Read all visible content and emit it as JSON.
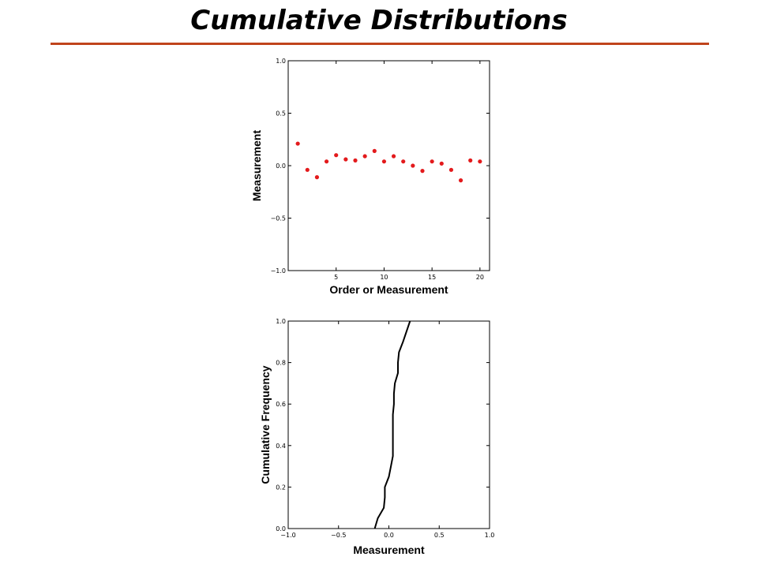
{
  "slide": {
    "title": "Cumulative Distributions"
  },
  "colors": {
    "title_rule": "#c0441c",
    "points": "#e31a1c",
    "line": "#000000"
  },
  "chart_data": [
    {
      "type": "scatter",
      "xlabel": "Order or Measurement",
      "ylabel": "Measurement",
      "xlim": [
        0,
        21
      ],
      "ylim": [
        -1.0,
        1.0
      ],
      "xticks": [
        "5",
        "10",
        "15",
        "20"
      ],
      "xtick_values": [
        5,
        10,
        15,
        20
      ],
      "yticks": [
        "−1.0",
        "−0.5",
        "0.0",
        "0.5",
        "1.0"
      ],
      "ytick_values": [
        -1.0,
        -0.5,
        0.0,
        0.5,
        1.0
      ],
      "series": [
        {
          "x": [
            1,
            2,
            3,
            4,
            5,
            6,
            7,
            8,
            9,
            10,
            11,
            12,
            13,
            14,
            15,
            16,
            17,
            18,
            19,
            20
          ],
          "values": [
            0.21,
            -0.04,
            -0.11,
            0.04,
            0.1,
            0.06,
            0.05,
            0.09,
            0.14,
            0.04,
            0.09,
            0.04,
            0.0,
            -0.05,
            0.04,
            0.02,
            -0.04,
            -0.14,
            0.05,
            0.04
          ]
        }
      ],
      "grid": false
    },
    {
      "type": "line",
      "xlabel": "Measurement",
      "ylabel": "Cumulative Frequency",
      "xlim": [
        -1.0,
        1.0
      ],
      "ylim": [
        0.0,
        1.0
      ],
      "xticks": [
        "−1.0",
        "−0.5",
        "0.0",
        "0.5",
        "1.0"
      ],
      "xtick_values": [
        -1.0,
        -0.5,
        0.0,
        0.5,
        1.0
      ],
      "yticks": [
        "0.0",
        "0.2",
        "0.4",
        "0.6",
        "0.8",
        "1.0"
      ],
      "ytick_values": [
        0.0,
        0.2,
        0.4,
        0.6,
        0.8,
        1.0
      ],
      "series": [
        {
          "x": [
            -0.14,
            -0.11,
            -0.05,
            -0.04,
            -0.04,
            0.0,
            0.02,
            0.04,
            0.04,
            0.04,
            0.04,
            0.04,
            0.05,
            0.05,
            0.06,
            0.09,
            0.09,
            0.1,
            0.14,
            0.21
          ],
          "values": [
            0.0,
            0.05,
            0.1,
            0.15,
            0.2,
            0.25,
            0.3,
            0.35,
            0.4,
            0.45,
            0.5,
            0.55,
            0.6,
            0.65,
            0.7,
            0.75,
            0.8,
            0.85,
            0.9,
            1.0
          ]
        }
      ],
      "grid": false
    }
  ]
}
